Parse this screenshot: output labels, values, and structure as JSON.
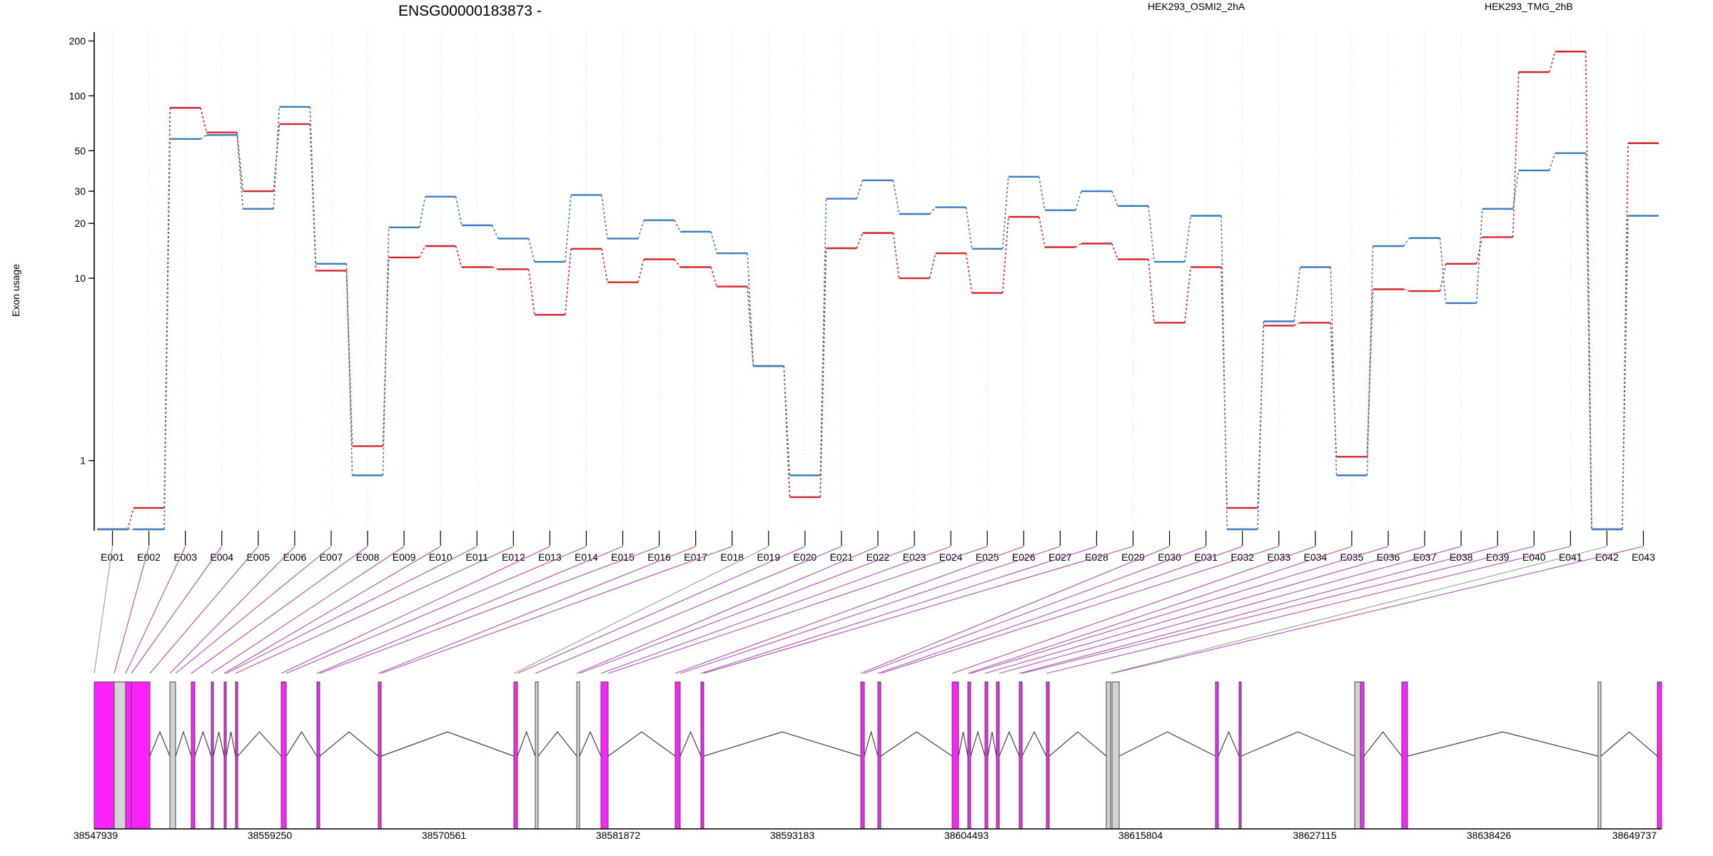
{
  "chart_data": {
    "type": "line",
    "title": "ENSG00000183873 -",
    "ylabel": "Exon usage",
    "yscale": "log",
    "ylim": [
      0.42,
      210
    ],
    "yticks": [
      1,
      10,
      20,
      30,
      50,
      100,
      200
    ],
    "grid": "vertical dotted",
    "legend_placement": "top-right",
    "categories": [
      "E001",
      "E002",
      "E003",
      "E004",
      "E005",
      "E006",
      "E007",
      "E008",
      "E009",
      "E010",
      "E011",
      "E012",
      "E013",
      "E014",
      "E015",
      "E016",
      "E017",
      "E018",
      "E019",
      "E020",
      "E021",
      "E022",
      "E023",
      "E024",
      "E025",
      "E026",
      "E027",
      "E028",
      "E029",
      "E030",
      "E031",
      "E032",
      "E033",
      "E034",
      "E035",
      "E036",
      "E037",
      "E038",
      "E039",
      "E040",
      "E041",
      "E042",
      "E043"
    ],
    "series": [
      {
        "name": "HEK293_OSMI2_2hA",
        "color": "#d62728",
        "values": [
          0.42,
          0.55,
          86,
          63,
          30,
          70,
          11,
          1.2,
          13,
          15,
          11.5,
          11.2,
          6.3,
          14.5,
          9.5,
          12.7,
          11.5,
          9,
          3.3,
          0.63,
          14.6,
          17.7,
          10,
          13.7,
          8.3,
          21.7,
          14.8,
          15.5,
          12.7,
          5.7,
          11.5,
          0.55,
          5.5,
          5.7,
          1.05,
          8.7,
          8.5,
          12,
          16.8,
          135,
          175,
          0.42,
          55
        ]
      },
      {
        "name": "HEK293_TMG_2hB",
        "color": "#3b7ec0",
        "values": [
          0.42,
          0.42,
          58,
          61,
          24,
          87,
          12,
          0.83,
          19,
          28,
          19.5,
          16.5,
          12.3,
          28.6,
          16.5,
          20.8,
          18,
          13.7,
          3.3,
          0.83,
          27.3,
          34.4,
          22.5,
          24.5,
          14.5,
          36,
          23.6,
          30,
          24.9,
          12.3,
          22,
          0.42,
          5.8,
          11.5,
          0.83,
          15,
          16.6,
          7.3,
          24,
          39,
          48.5,
          0.42,
          22
        ]
      }
    ],
    "gene_model": {
      "coordinate_labels": [
        "38547939",
        "38559250",
        "38570561",
        "38581872",
        "38593183",
        "38604493",
        "38615804",
        "38627115",
        "38638426",
        "38649737"
      ],
      "range": [
        38547939,
        38649737
      ],
      "fill_colors": {
        "significant": "#ff22ff",
        "other": "#d3d3d3"
      }
    }
  }
}
